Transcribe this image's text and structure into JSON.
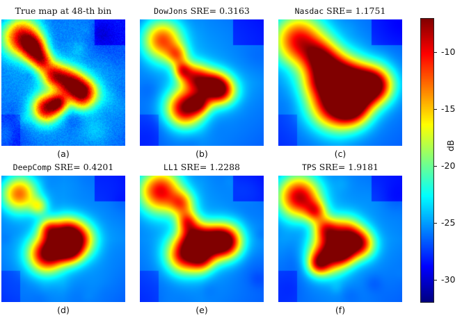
{
  "panels": [
    {
      "id": "a",
      "title_pre": "True map at 48-th bin",
      "title_mono": "",
      "title_post": "",
      "caption": "(a)",
      "noise": 0.9,
      "blobs": [
        [
          0.16,
          0.14,
          0.11,
          0.9
        ],
        [
          0.26,
          0.22,
          0.07,
          0.7
        ],
        [
          0.32,
          0.32,
          0.06,
          0.65
        ],
        [
          0.42,
          0.43,
          0.07,
          0.7
        ],
        [
          0.55,
          0.5,
          0.08,
          0.8
        ],
        [
          0.66,
          0.58,
          0.08,
          0.85
        ],
        [
          0.36,
          0.7,
          0.08,
          0.9
        ],
        [
          0.46,
          0.66,
          0.05,
          0.6
        ]
      ]
    },
    {
      "id": "b",
      "title_pre": "",
      "title_mono": "DowJons",
      "title_post": " SRE= 0.3163",
      "caption": "(b)",
      "noise": 0.25,
      "blobs": [
        [
          0.18,
          0.16,
          0.11,
          0.75
        ],
        [
          0.3,
          0.28,
          0.06,
          0.45
        ],
        [
          0.34,
          0.4,
          0.05,
          0.5
        ],
        [
          0.44,
          0.46,
          0.08,
          0.7
        ],
        [
          0.58,
          0.52,
          0.08,
          0.75
        ],
        [
          0.66,
          0.56,
          0.08,
          0.7
        ],
        [
          0.36,
          0.7,
          0.1,
          0.95
        ],
        [
          0.48,
          0.66,
          0.06,
          0.55
        ]
      ]
    },
    {
      "id": "c",
      "title_pre": "",
      "title_mono": "Nasdac",
      "title_post": " SRE= 1.1751",
      "caption": "(c)",
      "noise": 0.2,
      "blobs": [
        [
          0.16,
          0.16,
          0.14,
          0.85
        ],
        [
          0.34,
          0.3,
          0.1,
          0.65
        ],
        [
          0.46,
          0.44,
          0.12,
          0.8
        ],
        [
          0.62,
          0.52,
          0.12,
          0.9
        ],
        [
          0.78,
          0.52,
          0.1,
          0.9
        ],
        [
          0.44,
          0.68,
          0.13,
          0.85
        ],
        [
          0.6,
          0.7,
          0.1,
          0.75
        ],
        [
          0.3,
          0.5,
          0.1,
          0.35
        ]
      ]
    },
    {
      "id": "d",
      "title_pre": "",
      "title_mono": "DeepComp",
      "title_post": " SRE= 0.4201",
      "caption": "(d)",
      "noise": 0.25,
      "blobs": [
        [
          0.14,
          0.14,
          0.1,
          0.7
        ],
        [
          0.3,
          0.24,
          0.05,
          0.35
        ],
        [
          0.38,
          0.42,
          0.06,
          0.55
        ],
        [
          0.52,
          0.44,
          0.08,
          0.65
        ],
        [
          0.62,
          0.5,
          0.09,
          0.75
        ],
        [
          0.56,
          0.6,
          0.07,
          0.6
        ],
        [
          0.36,
          0.62,
          0.1,
          0.95
        ],
        [
          0.46,
          0.56,
          0.07,
          0.55
        ]
      ]
    },
    {
      "id": "e",
      "title_pre": "",
      "title_mono": "LL1",
      "title_post": " SRE= 1.2288",
      "caption": "(e)",
      "noise": 0.3,
      "blobs": [
        [
          0.16,
          0.12,
          0.12,
          0.85
        ],
        [
          0.34,
          0.22,
          0.07,
          0.5
        ],
        [
          0.38,
          0.36,
          0.06,
          0.55
        ],
        [
          0.44,
          0.48,
          0.08,
          0.65
        ],
        [
          0.58,
          0.52,
          0.09,
          0.8
        ],
        [
          0.7,
          0.52,
          0.09,
          0.9
        ],
        [
          0.36,
          0.62,
          0.1,
          0.9
        ],
        [
          0.5,
          0.66,
          0.07,
          0.55
        ]
      ]
    },
    {
      "id": "f",
      "title_pre": "",
      "title_mono": "TPS",
      "title_post": " SRE= 1.9181",
      "caption": "(f)",
      "noise": 0.55,
      "blobs": [
        [
          0.16,
          0.16,
          0.12,
          0.85
        ],
        [
          0.3,
          0.28,
          0.06,
          0.5
        ],
        [
          0.38,
          0.42,
          0.07,
          0.6
        ],
        [
          0.54,
          0.46,
          0.09,
          0.75
        ],
        [
          0.66,
          0.54,
          0.08,
          0.75
        ],
        [
          0.4,
          0.62,
          0.1,
          0.95
        ],
        [
          0.52,
          0.6,
          0.07,
          0.6
        ],
        [
          0.32,
          0.7,
          0.06,
          0.5
        ]
      ]
    }
  ],
  "colorbar": {
    "label": "dB",
    "min": -32,
    "max": -7,
    "ticks": [
      {
        "value": -10,
        "label": "-10"
      },
      {
        "value": -15,
        "label": "-15"
      },
      {
        "value": -20,
        "label": "-20"
      },
      {
        "value": -25,
        "label": "-25"
      },
      {
        "value": -30,
        "label": "-30"
      }
    ]
  },
  "colormap": "jet"
}
